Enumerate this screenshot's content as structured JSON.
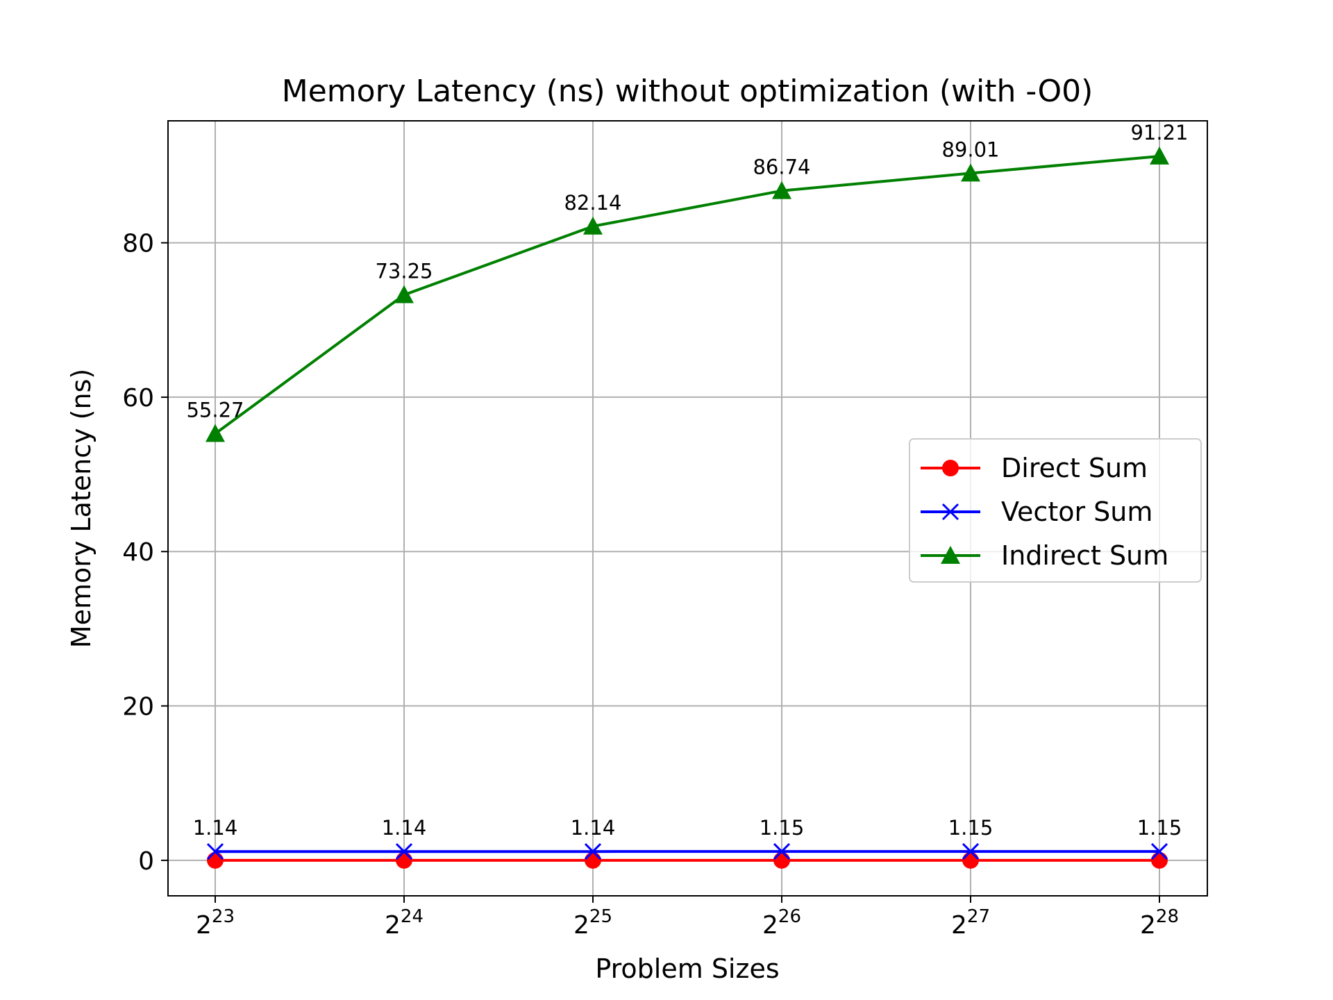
{
  "chart_data": {
    "type": "line",
    "title": "Memory Latency (ns) without optimization (with -O0)",
    "xlabel": "Problem Sizes",
    "ylabel": "Memory Latency (ns)",
    "x_tick_base": "2",
    "x_tick_exponents": [
      "23",
      "24",
      "25",
      "26",
      "27",
      "28"
    ],
    "y_ticks": [
      "0",
      "20",
      "40",
      "60",
      "80"
    ],
    "ylim": [
      -4.6,
      95.8
    ],
    "grid": true,
    "legend_position": "center-right",
    "series": [
      {
        "name": "Direct Sum",
        "color": "#ff0000",
        "marker": "circle",
        "values": [
          0.0,
          0.0,
          0.0,
          0.0,
          0.0,
          0.0
        ],
        "labels": []
      },
      {
        "name": "Vector Sum",
        "color": "#0000ff",
        "marker": "x",
        "values": [
          1.14,
          1.14,
          1.14,
          1.15,
          1.15,
          1.15
        ],
        "labels": [
          "1.14",
          "1.14",
          "1.14",
          "1.15",
          "1.15",
          "1.15"
        ]
      },
      {
        "name": "Indirect Sum",
        "color": "#008000",
        "marker": "triangle",
        "values": [
          55.27,
          73.25,
          82.14,
          86.74,
          89.01,
          91.21
        ],
        "labels": [
          "55.27",
          "73.25",
          "82.14",
          "86.74",
          "89.01",
          "91.21"
        ]
      }
    ]
  }
}
